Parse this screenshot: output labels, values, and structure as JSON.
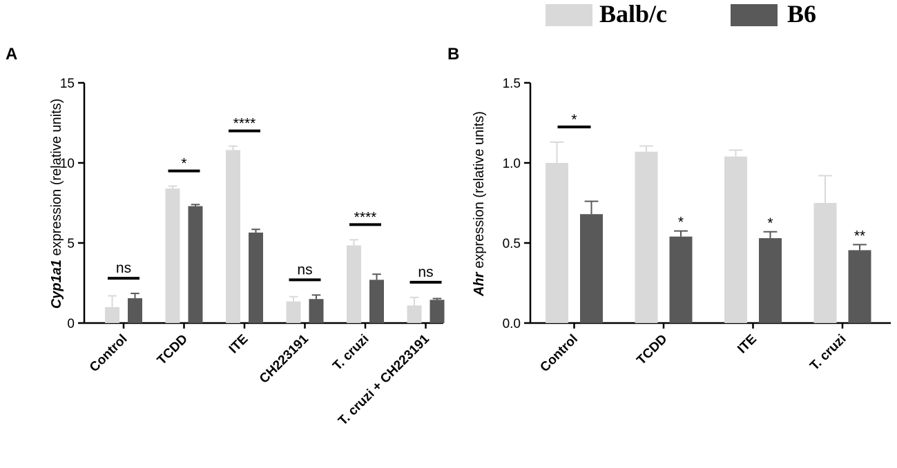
{
  "legend": {
    "series": [
      {
        "name": "Balb/c",
        "color": "#d9d9d9"
      },
      {
        "name": "B6",
        "color": "#595959"
      }
    ]
  },
  "chart_data": [
    {
      "panel": "A",
      "type": "bar",
      "ylabel_gene": "Cyp1a1",
      "ylabel_rest": " expression (relative units)",
      "ylim": [
        0,
        15
      ],
      "yticks": [
        0,
        5,
        10,
        15
      ],
      "categories": [
        "Control",
        "TCDD",
        "ITE",
        "CH223191",
        "T. cruzi",
        "T. cruzi + CH223191"
      ],
      "series": [
        {
          "name": "Balb/c",
          "values": [
            1.0,
            8.4,
            10.8,
            1.35,
            4.85,
            1.1
          ],
          "errors": [
            0.7,
            0.15,
            0.25,
            0.3,
            0.35,
            0.5
          ]
        },
        {
          "name": "B6",
          "values": [
            1.55,
            7.3,
            5.65,
            1.5,
            2.7,
            1.45
          ],
          "errors": [
            0.3,
            0.1,
            0.2,
            0.25,
            0.35,
            0.08
          ]
        }
      ],
      "significance": [
        {
          "category": "Control",
          "label": "ns",
          "bar": true
        },
        {
          "category": "TCDD",
          "label": "*",
          "bar": true
        },
        {
          "category": "ITE",
          "label": "****",
          "bar": true
        },
        {
          "category": "CH223191",
          "label": "ns",
          "bar": true
        },
        {
          "category": "T. cruzi",
          "label": "****",
          "bar": true
        },
        {
          "category": "T. cruzi + CH223191",
          "label": "ns",
          "bar": true
        }
      ]
    },
    {
      "panel": "B",
      "type": "bar",
      "ylabel_gene": "Ahr",
      "ylabel_rest": " expression (relative units)",
      "ylim": [
        0,
        1.5
      ],
      "yticks": [
        0.0,
        0.5,
        1.0,
        1.5
      ],
      "categories": [
        "Control",
        "TCDD",
        "ITE",
        "T. cruzi"
      ],
      "series": [
        {
          "name": "Balb/c",
          "values": [
            1.0,
            1.07,
            1.04,
            0.75
          ],
          "errors": [
            0.13,
            0.035,
            0.04,
            0.17
          ]
        },
        {
          "name": "B6",
          "values": [
            0.68,
            0.54,
            0.53,
            0.455
          ],
          "errors": [
            0.08,
            0.035,
            0.04,
            0.035
          ]
        }
      ],
      "significance": [
        {
          "category": "Control",
          "label": "*",
          "bar": true
        },
        {
          "category": "TCDD",
          "label": "*",
          "bar": false
        },
        {
          "category": "ITE",
          "label": "*",
          "bar": false
        },
        {
          "category": "T. cruzi",
          "label": "**",
          "bar": false
        }
      ]
    }
  ]
}
